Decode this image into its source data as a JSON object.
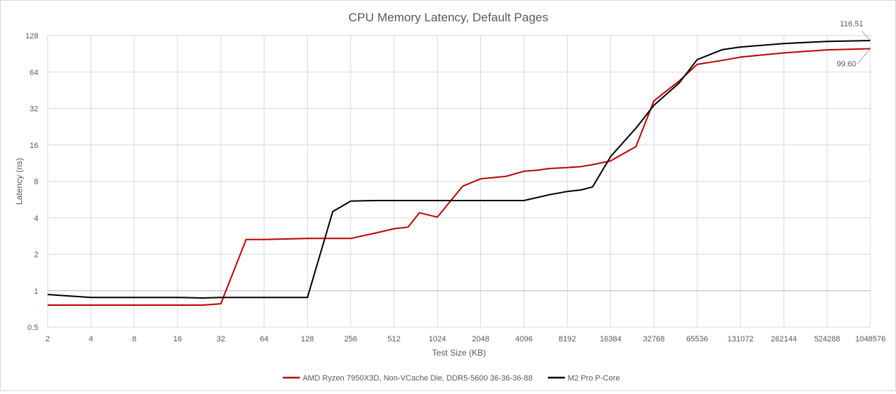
{
  "chart_data": {
    "type": "line",
    "title": "CPU Memory Latency, Default Pages",
    "xlabel": "Test Size (KB)",
    "ylabel": "Latency (ns)",
    "x_scale": "log2",
    "y_scale": "log2",
    "x_ticks": [
      2,
      4,
      8,
      16,
      32,
      64,
      128,
      256,
      512,
      1024,
      2048,
      4096,
      8192,
      16384,
      32768,
      65536,
      131072,
      262144,
      524288,
      1048576
    ],
    "y_ticks": [
      0.5,
      1,
      2,
      4,
      8,
      16,
      32,
      64,
      128
    ],
    "xlim": [
      2,
      1048576
    ],
    "ylim": [
      0.5,
      128
    ],
    "grid": true,
    "legend_position": "bottom",
    "colors": {
      "amd": "#c00000",
      "m2": "#000000",
      "grid": "#d9d9d9",
      "axis": "#bfbfbf",
      "text": "#595959"
    },
    "series": [
      {
        "name": "AMD Ryzen 7950X3D, Non-VCache Die, DDR5-5600 36-36-36-88",
        "color": "#c00000",
        "x": [
          2,
          4,
          8,
          16,
          24,
          32,
          48,
          64,
          96,
          128,
          192,
          256,
          384,
          512,
          640,
          768,
          1024,
          1536,
          2048,
          3072,
          4096,
          5120,
          6144,
          8192,
          10240,
          12288,
          16384,
          24576,
          32768,
          49152,
          65536,
          98304,
          131072,
          262144,
          524288,
          1048576
        ],
        "y": [
          0.76,
          0.76,
          0.76,
          0.76,
          0.76,
          0.78,
          2.65,
          2.65,
          2.68,
          2.7,
          2.7,
          2.7,
          3.0,
          3.25,
          3.35,
          4.4,
          4.05,
          7.3,
          8.4,
          8.8,
          9.7,
          9.9,
          10.2,
          10.4,
          10.6,
          11.0,
          11.8,
          15.5,
          37.0,
          54.0,
          74.0,
          80.0,
          85.0,
          92.0,
          97.5,
          99.6
        ]
      },
      {
        "name": "M2 Pro P-Core",
        "color": "#000000",
        "x": [
          2,
          4,
          8,
          16,
          24,
          32,
          48,
          64,
          96,
          128,
          192,
          256,
          384,
          512,
          768,
          1024,
          1536,
          2048,
          3072,
          4096,
          5120,
          6144,
          8192,
          10240,
          12288,
          16384,
          24576,
          32768,
          49152,
          65536,
          98304,
          131072,
          262144,
          524288,
          1048576
        ],
        "y": [
          0.93,
          0.88,
          0.88,
          0.88,
          0.87,
          0.88,
          0.88,
          0.88,
          0.88,
          0.88,
          4.5,
          5.5,
          5.55,
          5.55,
          5.55,
          5.55,
          5.55,
          5.55,
          5.55,
          5.55,
          5.9,
          6.2,
          6.6,
          6.8,
          7.2,
          12.8,
          22.0,
          34.0,
          52.0,
          81.0,
          98.0,
          103.0,
          110.0,
          114.5,
          116.51
        ]
      }
    ],
    "annotations": [
      {
        "text": "116.51",
        "series": "M2 Pro P-Core",
        "x": 1048576,
        "y": 116.51
      },
      {
        "text": "99.60",
        "series": "AMD Ryzen 7950X3D, Non-VCache Die, DDR5-5600 36-36-36-88",
        "x": 1048576,
        "y": 99.6
      }
    ]
  }
}
